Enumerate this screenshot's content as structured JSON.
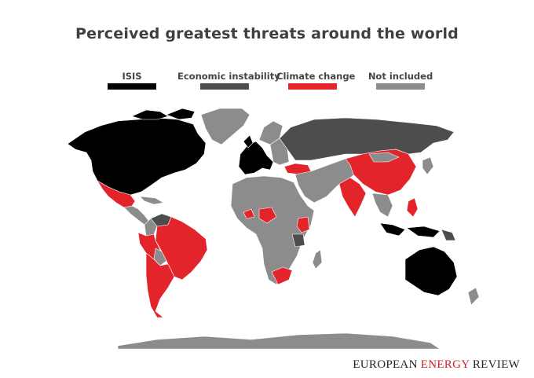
{
  "title": "Perceived greatest threats around the world",
  "legend": [
    {
      "label": "ISIS",
      "color": "#000000"
    },
    {
      "label": "Economic instability",
      "color": "#4d4d4d"
    },
    {
      "label": "Climate change",
      "color": "#e3242b"
    },
    {
      "label": "Not included",
      "color": "#8c8c8c"
    }
  ],
  "brand": {
    "part1": "EUROPEAN ",
    "part2": "ENERGY",
    "part3": " REVIEW"
  },
  "regions": {
    "north_america": "ISIS",
    "mexico": "Climate change",
    "central_america": "Not included",
    "venezuela": "Economic instability",
    "brazil": "Climate change",
    "peru": "Climate change",
    "bolivia": "Not included",
    "argentina": "Climate change",
    "greenland": "Not included",
    "western_europe": "ISIS",
    "russia": "Economic instability",
    "turkey": "Climate change",
    "china": "Climate change",
    "india": "Climate change",
    "philippines": "Climate change",
    "japan": "Not included",
    "indonesia": "ISIS",
    "australia": "ISIS",
    "nigeria": "Climate change",
    "kenya": "Climate change",
    "tanzania": "Economic instability",
    "south_africa": "Climate change",
    "antarctica": "Not included"
  }
}
